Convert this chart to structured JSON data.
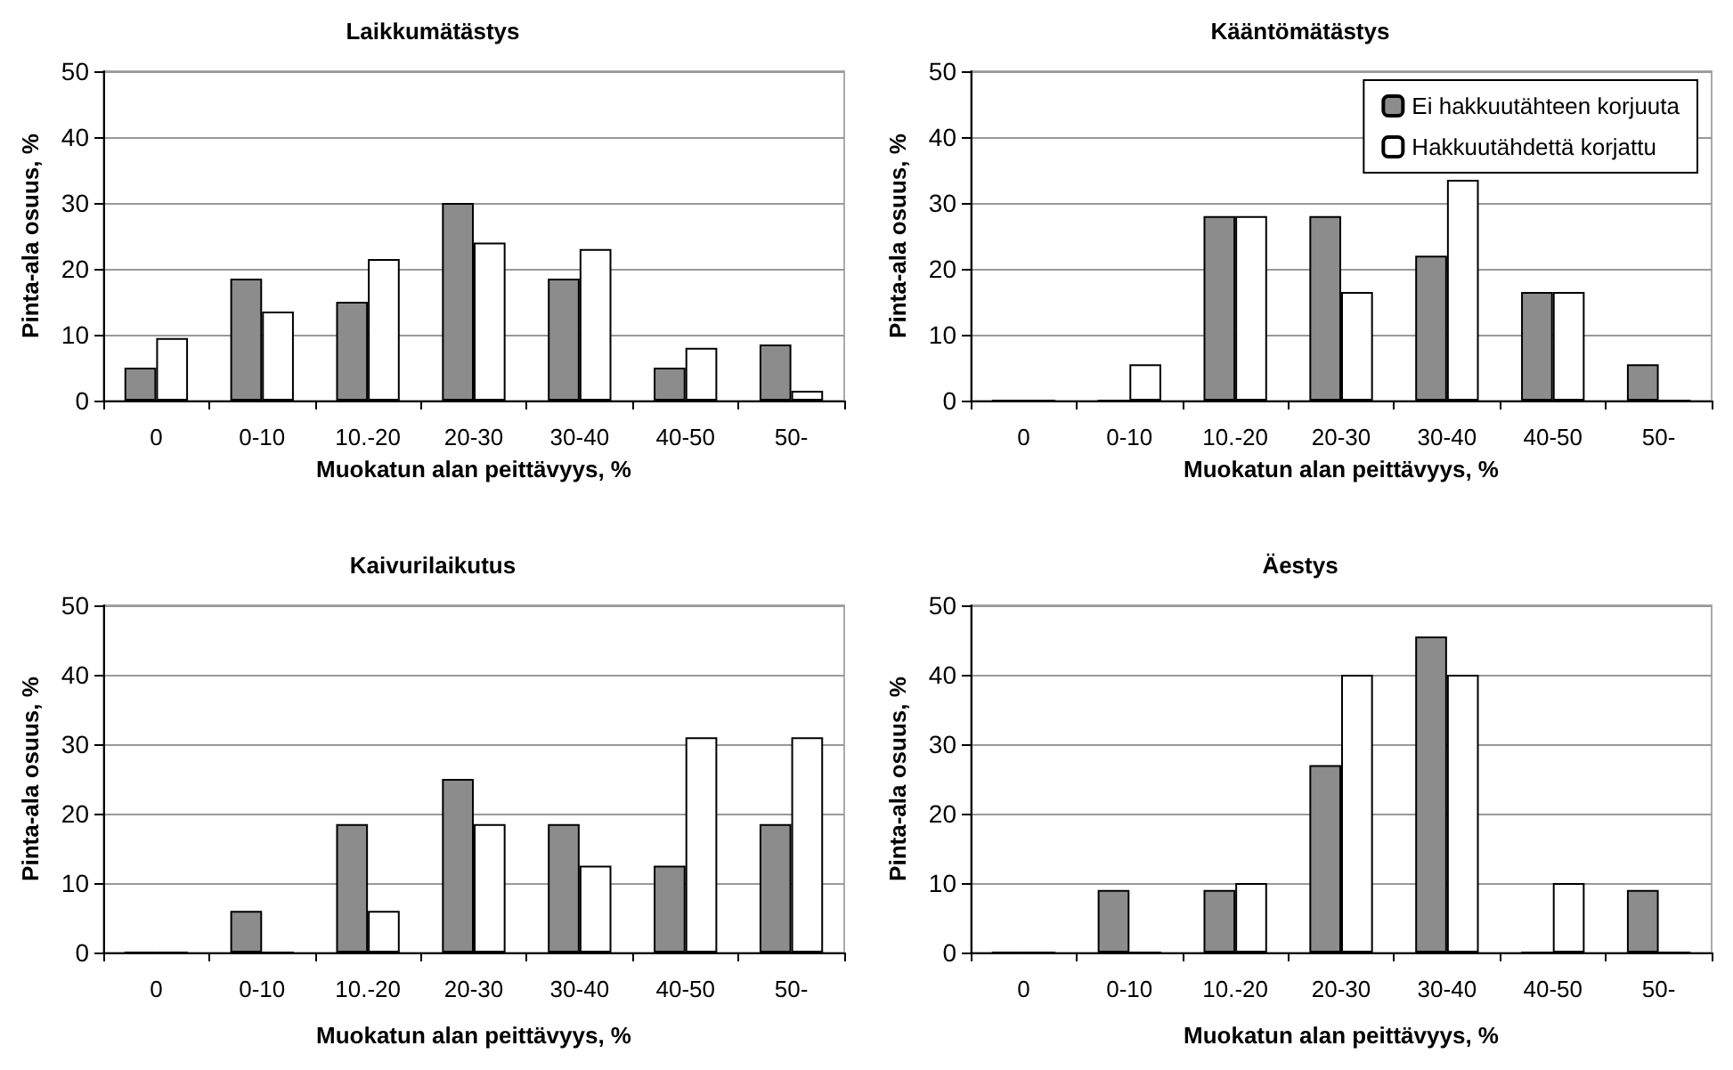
{
  "chart_data": [
    {
      "type": "bar",
      "title": "Laikkumätästys",
      "xlabel": "Muokatun alan peittävyys, %",
      "ylabel": "Pinta-ala osuus, %",
      "categories": [
        "0",
        "0-10",
        "10.-20",
        "20-30",
        "30-40",
        "40-50",
        "50-"
      ],
      "ylim": [
        0,
        50
      ],
      "yticks": [
        0,
        10,
        20,
        30,
        40,
        50
      ],
      "grid": "y",
      "series": [
        {
          "color": "#8c8c8c",
          "values": [
            5,
            18.5,
            15,
            30,
            18.5,
            5,
            8.5
          ]
        },
        {
          "color": "#ffffff",
          "values": [
            9.5,
            13.5,
            21.5,
            24,
            23,
            8,
            1.5
          ]
        }
      ]
    },
    {
      "type": "bar",
      "title": "Kääntömätästys",
      "xlabel": "Muokatun alan peittävyys, %",
      "ylabel": "Pinta-ala osuus, %",
      "categories": [
        "0",
        "0-10",
        "10.-20",
        "20-30",
        "30-40",
        "40-50",
        "50-"
      ],
      "ylim": [
        0,
        50
      ],
      "yticks": [
        0,
        10,
        20,
        30,
        40,
        50
      ],
      "grid": "y",
      "legend": "top right",
      "series": [
        {
          "name": "Ei hakkuutähteen korjuuta",
          "color": "#8c8c8c",
          "values": [
            0,
            0,
            28,
            28,
            22,
            16.5,
            5.5
          ]
        },
        {
          "name": "Hakkuutähdettä korjattu",
          "color": "#ffffff",
          "values": [
            0,
            5.5,
            28,
            16.5,
            33.5,
            16.5,
            0
          ]
        }
      ]
    },
    {
      "type": "bar",
      "title": "Kaivurilaikutus",
      "xlabel": "Muokatun alan peittävyys, %",
      "ylabel": "Pinta-ala osuus, %",
      "categories": [
        "0",
        "0-10",
        "10.-20",
        "20-30",
        "30-40",
        "40-50",
        "50-"
      ],
      "ylim": [
        0,
        50
      ],
      "yticks": [
        0,
        10,
        20,
        30,
        40,
        50
      ],
      "grid": "y",
      "series": [
        {
          "color": "#8c8c8c",
          "values": [
            0,
            6,
            18.5,
            25,
            18.5,
            12.5,
            18.5
          ]
        },
        {
          "color": "#ffffff",
          "values": [
            0,
            0,
            6,
            18.5,
            12.5,
            31,
            31
          ]
        }
      ]
    },
    {
      "type": "bar",
      "title": "Äestys",
      "xlabel": "Muokatun alan peittävyys, %",
      "ylabel": "Pinta-ala osuus, %",
      "categories": [
        "0",
        "0-10",
        "10.-20",
        "20-30",
        "30-40",
        "40-50",
        "50-"
      ],
      "ylim": [
        0,
        50
      ],
      "yticks": [
        0,
        10,
        20,
        30,
        40,
        50
      ],
      "grid": "y",
      "series": [
        {
          "color": "#8c8c8c",
          "values": [
            0,
            9,
            9,
            27,
            45.5,
            0,
            9
          ]
        },
        {
          "color": "#ffffff",
          "values": [
            0,
            0,
            10,
            40,
            40,
            10,
            0
          ]
        }
      ]
    }
  ]
}
